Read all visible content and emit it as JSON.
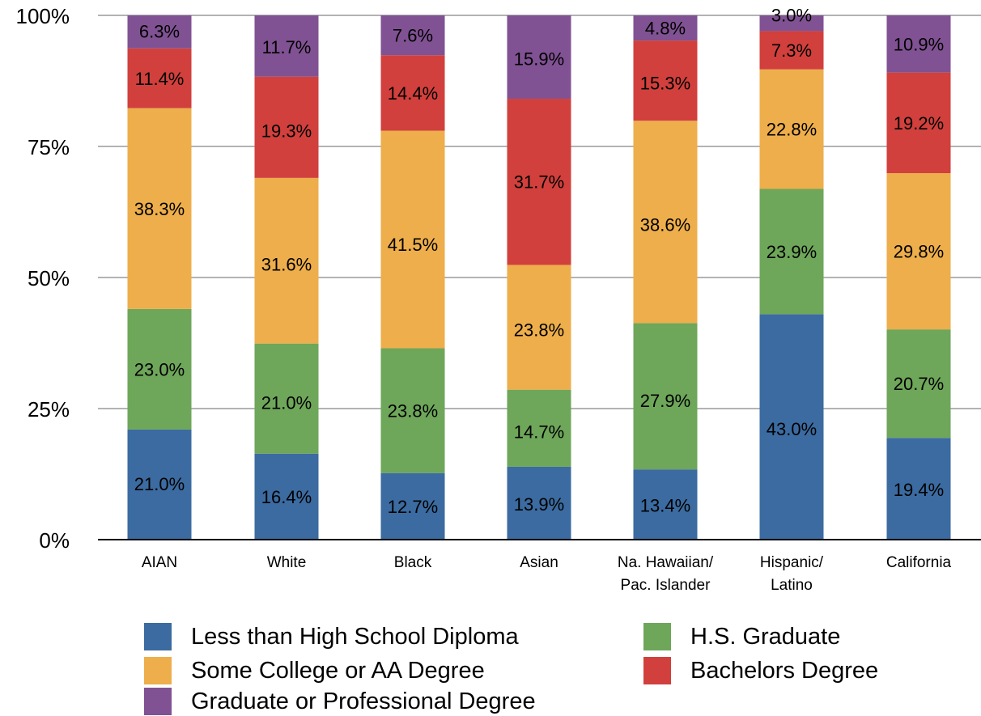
{
  "colors": {
    "less_than_hs": "#3b6ba0",
    "hs_graduate": "#6ea65a",
    "some_college": "#edae4b",
    "bachelors": "#d1403c",
    "graduate": "#805293",
    "axis": "#000000",
    "grid": "#b3b3b3"
  },
  "chart_data": {
    "type": "bar",
    "stacked": true,
    "percent": true,
    "categories": [
      [
        "AIAN"
      ],
      [
        "White"
      ],
      [
        "Black"
      ],
      [
        "Asian"
      ],
      [
        "Na. Hawaiian/",
        "Pac. Islander"
      ],
      [
        "Hispanic/",
        "Latino"
      ],
      [
        "California"
      ]
    ],
    "series": [
      {
        "name": "Less than High School Diploma",
        "color": "#3b6ba0",
        "values": [
          21.0,
          16.4,
          12.7,
          13.9,
          13.4,
          43.0,
          19.4
        ]
      },
      {
        "name": "H.S. Graduate",
        "color": "#6ea65a",
        "values": [
          23.0,
          21.0,
          23.8,
          14.7,
          27.9,
          23.9,
          20.7
        ]
      },
      {
        "name": "Some College or AA Degree",
        "color": "#edae4b",
        "values": [
          38.3,
          31.6,
          41.5,
          23.8,
          38.6,
          22.8,
          29.8
        ]
      },
      {
        "name": "Bachelors Degree",
        "color": "#d1403c",
        "values": [
          11.4,
          19.3,
          14.4,
          31.7,
          15.3,
          7.3,
          19.2
        ]
      },
      {
        "name": "Graduate or Professional Degree",
        "color": "#805293",
        "values": [
          6.3,
          11.7,
          7.6,
          15.9,
          4.8,
          3.0,
          10.9
        ]
      }
    ],
    "data_labels": [
      [
        "21.0%",
        "16.4%",
        "12.7%",
        "13.9%",
        "13.4%",
        "",
        "19.4%"
      ],
      [
        "23.0%",
        "21.0%",
        "23.8%",
        "14.7%",
        "27.9%",
        "23.9%",
        "20.7%"
      ],
      [
        "38.3%",
        "31.6%",
        "41.5%",
        "23.8%",
        "38.6%",
        "22.8%",
        "29.8%"
      ],
      [
        "11.4%",
        "19.3%",
        "14.4%",
        "31.7%",
        "15.3%",
        "7.3%",
        "19.2%"
      ],
      [
        "6.3%",
        "11.7%",
        "7.6%",
        "15.9%",
        "4.8%",
        "3.0%",
        "10.9%"
      ]
    ],
    "extra_labels": [
      "",
      "",
      "",
      "",
      "",
      "43.0%",
      ""
    ],
    "yticks": [
      "0%",
      "25%",
      "50%",
      "75%",
      "100%"
    ],
    "ylim": [
      0,
      100
    ],
    "grid": true,
    "legend_position": "bottom",
    "title": "",
    "xlabel": "",
    "ylabel": ""
  }
}
